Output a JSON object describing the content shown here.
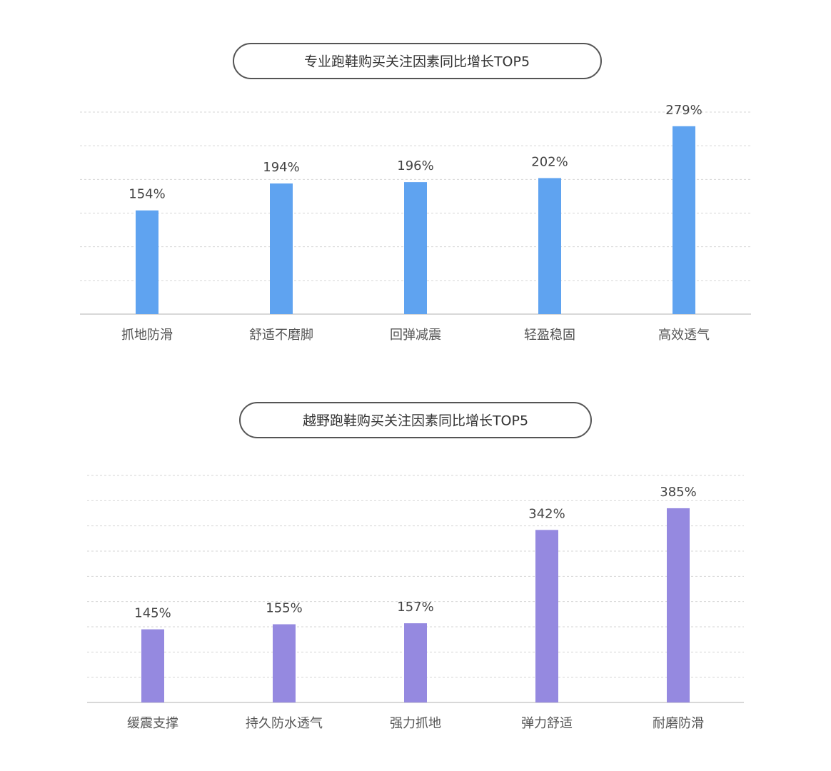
{
  "chart_data": [
    {
      "type": "bar",
      "title": "专业跑鞋购买关注因素同比增长TOP5",
      "categories": [
        "抓地防滑",
        "舒适不磨脚",
        "回弹减震",
        "轻盈稳固",
        "高效透气"
      ],
      "values": [
        154,
        194,
        196,
        202,
        279
      ],
      "value_labels": [
        "154%",
        "194%",
        "196%",
        "202%",
        "279%"
      ],
      "color": "#5fa3f0",
      "ylim": [
        0,
        300
      ],
      "grid": true
    },
    {
      "type": "bar",
      "title": "越野跑鞋购买关注因素同比增长TOP5",
      "categories": [
        "缓震支撑",
        "持久防水透气",
        "强力抓地",
        "弹力舒适",
        "耐磨防滑"
      ],
      "values": [
        145,
        155,
        157,
        342,
        385
      ],
      "value_labels": [
        "145%",
        "155%",
        "157%",
        "342%",
        "385%"
      ],
      "color": "#9589e0",
      "ylim": [
        0,
        450
      ],
      "grid": true
    }
  ]
}
